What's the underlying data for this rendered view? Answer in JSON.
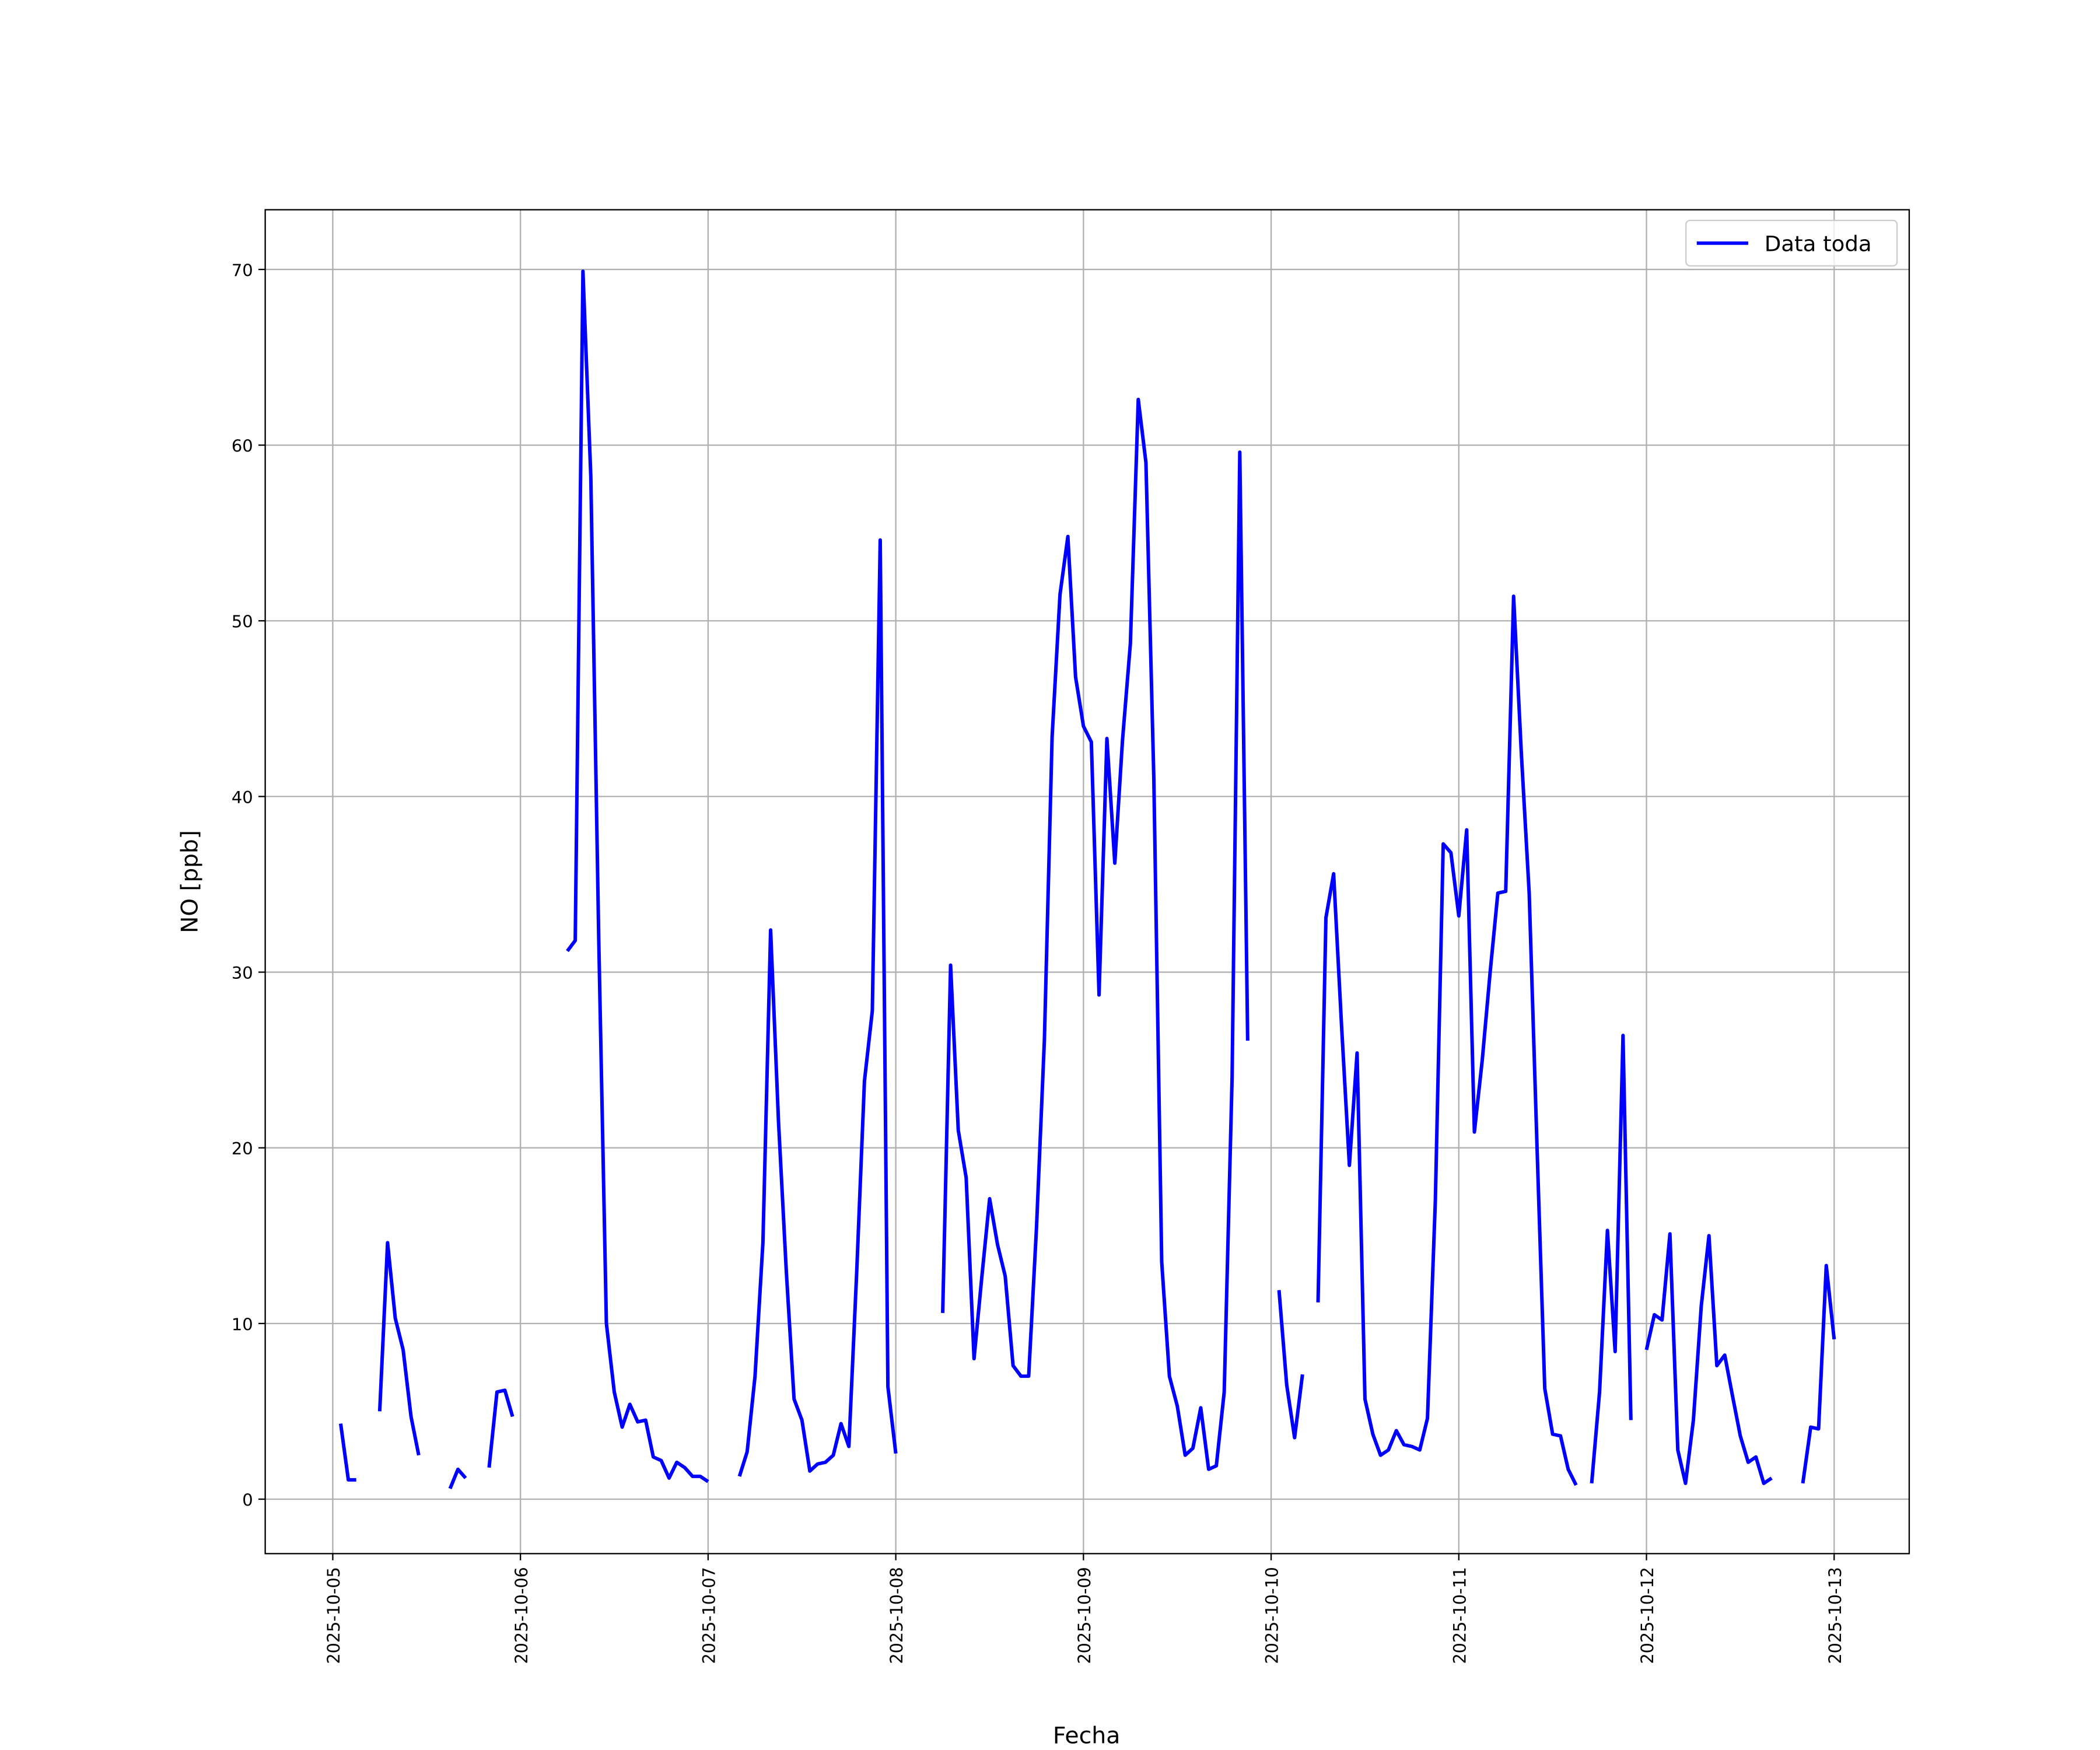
{
  "chart_data": {
    "type": "line",
    "xlabel": "Fecha",
    "ylabel": "NO [ppb]",
    "x": [
      0.042,
      0.083,
      0.125,
      0.167,
      0.25,
      0.292,
      0.333,
      0.375,
      0.417,
      0.458,
      0.5,
      0.625,
      0.667,
      0.708,
      0.75,
      0.833,
      0.875,
      0.917,
      0.958,
      1,
      1.25,
      1.292,
      1.333,
      1.375,
      1.417,
      1.458,
      1.5,
      1.542,
      1.583,
      1.625,
      1.667,
      1.708,
      1.75,
      1.792,
      1.833,
      1.875,
      1.917,
      1.958,
      2,
      2.042,
      2.167,
      2.208,
      2.25,
      2.292,
      2.333,
      2.375,
      2.417,
      2.458,
      2.5,
      2.542,
      2.583,
      2.625,
      2.667,
      2.708,
      2.75,
      2.792,
      2.833,
      2.875,
      2.917,
      2.958,
      3,
      3.042,
      3.25,
      3.292,
      3.333,
      3.375,
      3.417,
      3.458,
      3.5,
      3.542,
      3.583,
      3.625,
      3.667,
      3.708,
      3.75,
      3.792,
      3.833,
      3.875,
      3.917,
      3.958,
      4,
      4.042,
      4.083,
      4.125,
      4.167,
      4.208,
      4.25,
      4.292,
      4.333,
      4.375,
      4.417,
      4.458,
      4.5,
      4.542,
      4.583,
      4.625,
      4.667,
      4.708,
      4.75,
      4.792,
      4.833,
      4.875,
      4.917,
      5.042,
      5.083,
      5.125,
      5.167,
      5.208,
      5.25,
      5.292,
      5.333,
      5.375,
      5.417,
      5.458,
      5.5,
      5.542,
      5.583,
      5.625,
      5.667,
      5.708,
      5.75,
      5.792,
      5.833,
      5.875,
      5.917,
      5.958,
      6,
      6.042,
      6.083,
      6.125,
      6.167,
      6.208,
      6.25,
      6.292,
      6.333,
      6.375,
      6.417,
      6.458,
      6.5,
      6.542,
      6.583,
      6.625,
      6.667,
      6.708,
      6.75,
      6.792,
      6.833,
      6.875,
      6.917,
      6.958,
      7,
      7.042,
      7.083,
      7.125,
      7.167,
      7.208,
      7.25,
      7.292,
      7.333,
      7.375,
      7.417,
      7.458,
      7.5,
      7.542,
      7.583,
      7.625,
      7.667,
      7.708,
      7.833,
      7.875,
      7.917,
      7.958,
      8
    ],
    "series": [
      {
        "name": "Data toda",
        "color": "#0000ff",
        "values": [
          4.3,
          1.1,
          1.1,
          null,
          5.0,
          14.6,
          10.3,
          8.5,
          4.7,
          2.5,
          null,
          0.6,
          1.7,
          1.2,
          null,
          1.8,
          6.1,
          6.2,
          4.7,
          null,
          31.2,
          31.8,
          69.9,
          58.2,
          32,
          10,
          6.1,
          4.1,
          5.4,
          4.4,
          4.5,
          2.4,
          2.2,
          1.2,
          2.1,
          1.8,
          1.3,
          1.3,
          1.0,
          null,
          1.3,
          2.7,
          7.0,
          14.6,
          32.4,
          21.5,
          12.9,
          5.7,
          4.5,
          1.6,
          2.0,
          2.1,
          2.5,
          4.3,
          3.0,
          13,
          23.8,
          27.8,
          54.6,
          6.4,
          2.6,
          null,
          10.6,
          30.4,
          21,
          18.3,
          8.0,
          12.6,
          17.1,
          14.5,
          12.7,
          7.6,
          7.0,
          7.0,
          15.5,
          26.2,
          43.4,
          51.5,
          54.8,
          46.8,
          44.0,
          43.1,
          28.7,
          43.3,
          36.2,
          43.2,
          48.7,
          62.6,
          59.0,
          41,
          13.5,
          7.0,
          5.3,
          2.5,
          2.9,
          5.2,
          1.7,
          1.9,
          6.1,
          24,
          59.6,
          26.1,
          null,
          11.9,
          6.5,
          3.5,
          7.1,
          null,
          11.2,
          33.1,
          35.6,
          27,
          19,
          25.4,
          5.7,
          3.7,
          2.5,
          2.8,
          3.9,
          3.1,
          3.0,
          2.8,
          4.6,
          17,
          37.3,
          36.8,
          33.2,
          38.1,
          20.9,
          25,
          30,
          34.5,
          34.6,
          51.4,
          42.5,
          34.5,
          20,
          6.3,
          3.7,
          3.6,
          1.7,
          0.8,
          null,
          0.9,
          6.1,
          15.3,
          8.4,
          26.4,
          4.5,
          null,
          8.5,
          10.5,
          10.2,
          15.1,
          2.8,
          0.9,
          4.5,
          11,
          15,
          7.6,
          8.2,
          5.9,
          3.6,
          2.1,
          2.4,
          0.9,
          1.2,
          null,
          0.9,
          4.1,
          4.0,
          13.3,
          9.1
        ]
      }
    ],
    "xlim": [
      -0.36,
      8.4
    ],
    "xticks": [
      {
        "value": 0,
        "label": "2025-10-05"
      },
      {
        "value": 1,
        "label": "2025-10-06"
      },
      {
        "value": 2,
        "label": "2025-10-07"
      },
      {
        "value": 3,
        "label": "2025-10-08"
      },
      {
        "value": 4,
        "label": "2025-10-09"
      },
      {
        "value": 5,
        "label": "2025-10-10"
      },
      {
        "value": 6,
        "label": "2025-10-11"
      },
      {
        "value": 7,
        "label": "2025-10-12"
      },
      {
        "value": 8,
        "label": "2025-10-13"
      }
    ],
    "ylim": [
      -3.1,
      73.4
    ],
    "yticks": [
      0,
      10,
      20,
      30,
      40,
      50,
      60,
      70
    ],
    "grid": true,
    "legend": "upper right"
  }
}
